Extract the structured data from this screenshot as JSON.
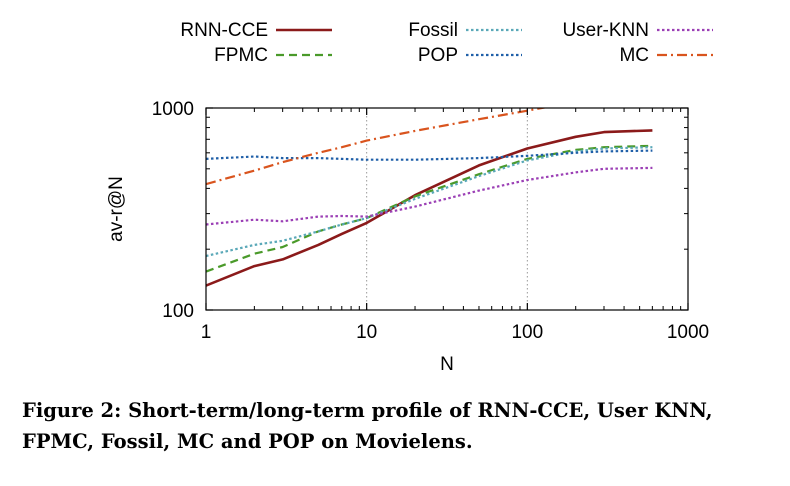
{
  "chart_data": {
    "type": "line",
    "xscale": "log",
    "yscale": "log",
    "xlabel": "N",
    "ylabel": "av-r@N",
    "xlim": [
      1,
      1000
    ],
    "ylim": [
      100,
      1000
    ],
    "xticks": [
      "1",
      "10",
      "100",
      "1000"
    ],
    "yticks": [
      "100",
      "1000"
    ],
    "grid": true,
    "legend_position": "top",
    "series": [
      {
        "name": "RNN-CCE",
        "color": "#8b1a1a",
        "style": "solid",
        "x": [
          1,
          2,
          3,
          5,
          7,
          10,
          20,
          50,
          100,
          200,
          300,
          600
        ],
        "y": [
          132,
          165,
          178,
          210,
          238,
          270,
          370,
          520,
          630,
          720,
          760,
          775
        ]
      },
      {
        "name": "FPMC",
        "color": "#4a9a2a",
        "style": "dashed",
        "x": [
          1,
          2,
          3,
          5,
          7,
          10,
          20,
          50,
          100,
          200,
          300,
          600
        ],
        "y": [
          155,
          190,
          205,
          245,
          265,
          285,
          365,
          470,
          560,
          620,
          640,
          650
        ]
      },
      {
        "name": "Fossil",
        "color": "#5aa8b8",
        "style": "dotted",
        "x": [
          1,
          2,
          3,
          5,
          7,
          10,
          20,
          50,
          100,
          200,
          300,
          600
        ],
        "y": [
          185,
          210,
          220,
          245,
          265,
          285,
          355,
          460,
          550,
          610,
          630,
          640
        ]
      },
      {
        "name": "POP",
        "color": "#1f5fa8",
        "style": "dotted",
        "x": [
          1,
          2,
          3,
          5,
          7,
          10,
          20,
          50,
          100,
          200,
          300,
          600
        ],
        "y": [
          560,
          575,
          565,
          565,
          560,
          555,
          555,
          565,
          580,
          600,
          610,
          615
        ]
      },
      {
        "name": "User-KNN",
        "color": "#9b3fb5",
        "style": "dotted",
        "x": [
          1,
          2,
          3,
          5,
          7,
          10,
          20,
          50,
          100,
          200,
          300,
          600
        ],
        "y": [
          265,
          280,
          275,
          290,
          292,
          290,
          325,
          390,
          440,
          480,
          500,
          505
        ]
      },
      {
        "name": "MC",
        "color": "#d9541e",
        "style": "dashdot",
        "x": [
          1,
          2,
          3,
          5,
          7,
          10,
          20,
          50,
          100,
          150
        ],
        "y": [
          420,
          490,
          540,
          600,
          640,
          690,
          770,
          880,
          970,
          1030
        ]
      }
    ]
  },
  "caption": "Figure 2: Short-term/long-term profile of RNN-CCE, User KNN, FPMC, Fossil, MC and POP on Movielens."
}
